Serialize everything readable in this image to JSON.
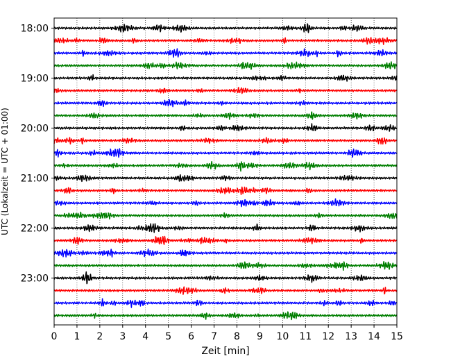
{
  "chart_data": {
    "type": "line",
    "title": "",
    "xlabel": "Zeit  [min]",
    "ylabel": "UTC (Lokalzeit = UTC + 01:00)",
    "xlim": [
      0,
      15
    ],
    "x_ticks": [
      0,
      1,
      2,
      3,
      4,
      5,
      6,
      7,
      8,
      9,
      10,
      11,
      12,
      13,
      14,
      15
    ],
    "y_ticks": [
      "18:00",
      "19:00",
      "20:00",
      "21:00",
      "22:00",
      "23:00"
    ],
    "grid": "vertical dotted",
    "legend": "none",
    "trace_colors": [
      "#000000",
      "#ff0000",
      "#0000ff",
      "#007f00"
    ],
    "traces_per_hour": 4,
    "trace_interval_min": 15,
    "first_trace": "18:00",
    "trace_count": 24
  }
}
